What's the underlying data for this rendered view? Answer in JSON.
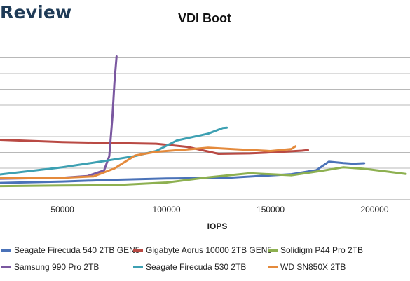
{
  "brand": {
    "name": "Review"
  },
  "chart_data": {
    "type": "line",
    "title": "VDI Boot",
    "xlabel": "IOPS",
    "ylabel": "",
    "xlim": [
      20000,
      217000
    ],
    "ylim": [
      0,
      1
    ],
    "x_ticks": [
      50000,
      100000,
      150000,
      200000
    ],
    "x_tick_labels": [
      "50000",
      "100000",
      "150000",
      "200000"
    ],
    "y_ticks": [
      0.1,
      0.2,
      0.3,
      0.4,
      0.5,
      0.6,
      0.7,
      0.8,
      0.9
    ],
    "y_tick_labels_shown": false,
    "grid": {
      "horizontal": true,
      "vertical": false
    },
    "legend_position": "bottom",
    "series": [
      {
        "name": "Seagate Firecuda 540 2TB GEN5",
        "color": "#4a72b8",
        "points": [
          [
            20000,
            0.106
          ],
          [
            50000,
            0.115
          ],
          [
            75000,
            0.126
          ],
          [
            100000,
            0.134
          ],
          [
            130000,
            0.139
          ],
          [
            160000,
            0.162
          ],
          [
            172000,
            0.187
          ],
          [
            178000,
            0.241
          ],
          [
            185000,
            0.232
          ],
          [
            190000,
            0.228
          ],
          [
            195000,
            0.231
          ]
        ]
      },
      {
        "name": "Gigabyte Aorus 10000 2TB GEN5",
        "color": "#b94a44",
        "points": [
          [
            20000,
            0.38
          ],
          [
            50000,
            0.366
          ],
          [
            80000,
            0.358
          ],
          [
            95000,
            0.355
          ],
          [
            110000,
            0.335
          ],
          [
            125000,
            0.291
          ],
          [
            140000,
            0.294
          ],
          [
            155000,
            0.303
          ],
          [
            165000,
            0.311
          ],
          [
            168000,
            0.315
          ]
        ]
      },
      {
        "name": "Solidigm P44 Pro 2TB",
        "color": "#8db050",
        "points": [
          [
            20000,
            0.086
          ],
          [
            50000,
            0.09
          ],
          [
            75000,
            0.092
          ],
          [
            100000,
            0.109
          ],
          [
            120000,
            0.142
          ],
          [
            140000,
            0.168
          ],
          [
            160000,
            0.155
          ],
          [
            175000,
            0.184
          ],
          [
            185000,
            0.206
          ],
          [
            195000,
            0.196
          ],
          [
            205000,
            0.18
          ],
          [
            215000,
            0.163
          ]
        ]
      },
      {
        "name": "Samsung 990 Pro 2TB",
        "color": "#7a57a0",
        "points": [
          [
            20000,
            0.133
          ],
          [
            50000,
            0.139
          ],
          [
            62000,
            0.15
          ],
          [
            70000,
            0.186
          ],
          [
            72500,
            0.276
          ],
          [
            74000,
            0.526
          ],
          [
            75000,
            0.746
          ],
          [
            76000,
            0.909
          ]
        ]
      },
      {
        "name": "Seagate Firecuda 530 2TB",
        "color": "#3da0b2",
        "points": [
          [
            20000,
            0.16
          ],
          [
            50000,
            0.206
          ],
          [
            70000,
            0.245
          ],
          [
            85000,
            0.277
          ],
          [
            95000,
            0.309
          ],
          [
            105000,
            0.376
          ],
          [
            120000,
            0.419
          ],
          [
            127000,
            0.454
          ],
          [
            129000,
            0.457
          ]
        ]
      },
      {
        "name": "WD SN850X 2TB",
        "color": "#e48a3c",
        "points": [
          [
            20000,
            0.136
          ],
          [
            50000,
            0.138
          ],
          [
            65000,
            0.148
          ],
          [
            75000,
            0.198
          ],
          [
            85000,
            0.281
          ],
          [
            95000,
            0.304
          ],
          [
            110000,
            0.319
          ],
          [
            120000,
            0.33
          ],
          [
            135000,
            0.319
          ],
          [
            150000,
            0.309
          ],
          [
            160000,
            0.322
          ],
          [
            162000,
            0.339
          ]
        ]
      }
    ]
  }
}
